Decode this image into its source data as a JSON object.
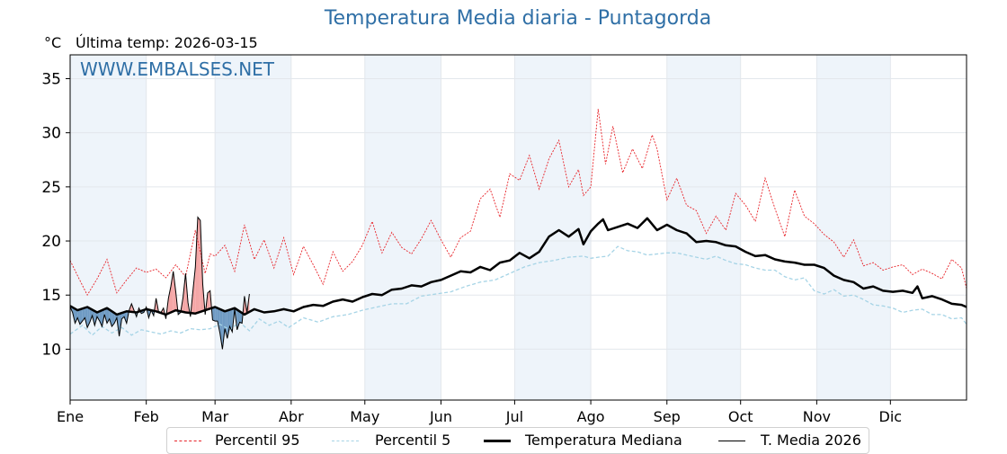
{
  "header": {
    "unit": "°C",
    "last_temp": "Última temp: 2026-03-15"
  },
  "chart_data": {
    "type": "line",
    "title": "Temperatura Media diaria - Puntagorda",
    "watermark": "WWW.EMBALSES.NET",
    "xlabel": "",
    "ylabel": "°C",
    "xlim": [
      1,
      366
    ],
    "ylim": [
      5.3,
      37.2
    ],
    "grid": true,
    "yticks": [
      10,
      15,
      20,
      25,
      30,
      35
    ],
    "month_ticks": [
      {
        "label": "Ene",
        "day": 1
      },
      {
        "label": "Feb",
        "day": 32
      },
      {
        "label": "Mar",
        "day": 60
      },
      {
        "label": "Abr",
        "day": 91
      },
      {
        "label": "May",
        "day": 121
      },
      {
        "label": "Jun",
        "day": 152
      },
      {
        "label": "Jul",
        "day": 182
      },
      {
        "label": "Ago",
        "day": 213
      },
      {
        "label": "Sep",
        "day": 244
      },
      {
        "label": "Oct",
        "day": 274
      },
      {
        "label": "Nov",
        "day": 305
      },
      {
        "label": "Dic",
        "day": 335
      }
    ],
    "shaded_months": [
      [
        1,
        32
      ],
      [
        60,
        91
      ],
      [
        121,
        152
      ],
      [
        182,
        213
      ],
      [
        244,
        274
      ],
      [
        305,
        335
      ]
    ],
    "legend_position": "bottom",
    "colors": {
      "p95": "#e8242a",
      "p5": "#a6d4e6",
      "median": "#000000",
      "current": "#000000",
      "above_fill": "#f4a6a6",
      "below_fill": "#6f9bc4",
      "shade": "#eef4fa",
      "title": "#2f6fa6"
    },
    "series": [
      {
        "name": "Percentil 95",
        "key": "p95",
        "x": [
          1,
          4,
          8,
          12,
          16,
          20,
          24,
          28,
          32,
          36,
          40,
          44,
          48,
          52,
          56,
          58,
          60,
          64,
          68,
          72,
          76,
          80,
          84,
          88,
          92,
          96,
          100,
          104,
          108,
          112,
          116,
          120,
          124,
          128,
          132,
          136,
          140,
          144,
          148,
          152,
          156,
          160,
          164,
          168,
          172,
          176,
          180,
          184,
          188,
          192,
          196,
          200,
          204,
          208,
          210,
          213,
          216,
          219,
          222,
          226,
          230,
          234,
          238,
          240,
          244,
          248,
          252,
          256,
          260,
          264,
          268,
          272,
          276,
          280,
          284,
          288,
          292,
          296,
          300,
          304,
          308,
          312,
          316,
          320,
          324,
          328,
          332,
          336,
          340,
          344,
          348,
          352,
          356,
          360,
          364,
          366
        ],
        "values": [
          18.2,
          16.8,
          15.0,
          16.5,
          18.3,
          15.2,
          16.4,
          17.5,
          17.1,
          17.4,
          16.6,
          17.8,
          16.7,
          21.0,
          17.0,
          18.8,
          18.6,
          19.6,
          17.2,
          21.5,
          18.3,
          20.1,
          17.5,
          20.3,
          16.9,
          19.5,
          17.8,
          16.0,
          19.0,
          17.2,
          18.1,
          19.6,
          21.8,
          18.9,
          20.8,
          19.4,
          18.8,
          20.2,
          21.9,
          20.1,
          18.5,
          20.3,
          20.9,
          23.9,
          24.8,
          22.2,
          26.2,
          25.6,
          27.9,
          24.8,
          27.6,
          29.3,
          25.0,
          26.6,
          24.2,
          25.0,
          32.2,
          27.1,
          30.6,
          26.3,
          28.5,
          26.7,
          29.8,
          28.5,
          23.8,
          25.8,
          23.3,
          22.8,
          20.7,
          22.3,
          21.0,
          24.4,
          23.3,
          21.8,
          25.8,
          23.0,
          20.4,
          24.7,
          22.3,
          21.6,
          20.6,
          19.9,
          18.5,
          20.1,
          17.7,
          18.0,
          17.3,
          17.6,
          17.8,
          16.9,
          17.4,
          17.0,
          16.5,
          18.3,
          17.5,
          15.6
        ]
      },
      {
        "name": "Percentil 5",
        "key": "p5",
        "x": [
          1,
          6,
          10,
          14,
          18,
          22,
          26,
          30,
          34,
          38,
          42,
          46,
          50,
          54,
          58,
          62,
          66,
          70,
          74,
          78,
          82,
          86,
          90,
          96,
          102,
          108,
          114,
          120,
          126,
          132,
          138,
          144,
          150,
          156,
          162,
          168,
          174,
          180,
          186,
          192,
          198,
          204,
          210,
          213,
          216,
          220,
          224,
          228,
          232,
          236,
          240,
          244,
          248,
          252,
          256,
          260,
          264,
          268,
          272,
          276,
          280,
          284,
          288,
          292,
          296,
          300,
          304,
          308,
          312,
          316,
          320,
          324,
          328,
          332,
          336,
          340,
          344,
          348,
          352,
          356,
          360,
          364,
          366
        ],
        "values": [
          11.4,
          12.2,
          11.3,
          12.1,
          11.5,
          12.0,
          11.3,
          11.8,
          11.6,
          11.4,
          11.7,
          11.5,
          11.9,
          11.8,
          11.9,
          12.3,
          11.8,
          12.5,
          11.7,
          12.8,
          12.2,
          12.6,
          12.0,
          12.9,
          12.5,
          13.0,
          13.2,
          13.6,
          13.9,
          14.2,
          14.2,
          14.9,
          15.1,
          15.3,
          15.8,
          16.2,
          16.4,
          17.0,
          17.6,
          18.0,
          18.2,
          18.5,
          18.6,
          18.4,
          18.5,
          18.6,
          19.5,
          19.1,
          19.0,
          18.7,
          18.8,
          18.9,
          18.9,
          18.7,
          18.5,
          18.3,
          18.6,
          18.2,
          17.9,
          17.8,
          17.5,
          17.3,
          17.3,
          16.7,
          16.4,
          16.6,
          15.4,
          15.1,
          15.5,
          14.9,
          15.0,
          14.6,
          14.1,
          14.0,
          13.8,
          13.4,
          13.6,
          13.7,
          13.2,
          13.2,
          12.8,
          12.9,
          12.3
        ]
      },
      {
        "name": "Temperatura Mediana",
        "key": "median",
        "x": [
          1,
          4,
          8,
          12,
          16,
          20,
          24,
          28,
          32,
          36,
          40,
          44,
          48,
          52,
          56,
          60,
          64,
          68,
          72,
          76,
          80,
          84,
          88,
          92,
          96,
          100,
          104,
          108,
          112,
          116,
          120,
          124,
          128,
          132,
          136,
          140,
          144,
          148,
          152,
          156,
          160,
          164,
          168,
          172,
          176,
          180,
          184,
          188,
          192,
          196,
          200,
          204,
          208,
          210,
          213,
          216,
          218,
          220,
          224,
          228,
          232,
          236,
          240,
          244,
          248,
          252,
          256,
          260,
          264,
          268,
          272,
          276,
          280,
          284,
          288,
          292,
          296,
          300,
          304,
          308,
          312,
          316,
          320,
          324,
          328,
          332,
          336,
          340,
          344,
          346,
          348,
          352,
          356,
          360,
          364,
          366
        ],
        "values": [
          14.0,
          13.6,
          13.9,
          13.4,
          13.8,
          13.2,
          13.5,
          13.4,
          13.7,
          13.5,
          13.2,
          13.6,
          13.4,
          13.3,
          13.6,
          13.9,
          13.5,
          13.8,
          13.2,
          13.7,
          13.4,
          13.5,
          13.7,
          13.5,
          13.9,
          14.1,
          14.0,
          14.4,
          14.6,
          14.4,
          14.8,
          15.1,
          15.0,
          15.5,
          15.6,
          15.9,
          15.8,
          16.2,
          16.4,
          16.8,
          17.2,
          17.1,
          17.6,
          17.3,
          18.0,
          18.2,
          18.9,
          18.4,
          19.0,
          20.4,
          21.0,
          20.4,
          21.1,
          19.7,
          20.9,
          21.6,
          22.0,
          21.0,
          21.3,
          21.6,
          21.2,
          22.1,
          21.0,
          21.5,
          21.0,
          20.7,
          19.9,
          20.0,
          19.9,
          19.6,
          19.5,
          19.0,
          18.6,
          18.7,
          18.3,
          18.1,
          18.0,
          17.8,
          17.8,
          17.5,
          16.8,
          16.4,
          16.2,
          15.6,
          15.8,
          15.4,
          15.3,
          15.4,
          15.2,
          15.8,
          14.7,
          14.9,
          14.6,
          14.2,
          14.1,
          13.9
        ]
      },
      {
        "name": "T. Media 2026",
        "key": "current",
        "x": [
          1,
          2,
          3,
          4,
          5,
          6,
          7,
          8,
          9,
          10,
          11,
          12,
          13,
          14,
          15,
          16,
          17,
          18,
          19,
          20,
          21,
          22,
          23,
          24,
          25,
          26,
          27,
          28,
          29,
          30,
          31,
          32,
          33,
          34,
          35,
          36,
          37,
          38,
          39,
          40,
          41,
          42,
          43,
          44,
          45,
          46,
          47,
          48,
          49,
          50,
          51,
          52,
          53,
          54,
          55,
          56,
          57,
          58,
          59,
          60,
          61,
          62,
          63,
          64,
          65,
          66,
          67,
          68,
          69,
          70,
          71,
          72,
          73,
          74
        ],
        "values": [
          13.9,
          13.4,
          12.4,
          12.9,
          12.3,
          12.6,
          12.9,
          12.0,
          12.5,
          13.1,
          12.2,
          13.0,
          12.6,
          12.1,
          13.2,
          12.4,
          12.8,
          12.1,
          12.4,
          12.9,
          11.2,
          12.8,
          13.0,
          12.4,
          13.6,
          14.2,
          13.6,
          13.0,
          13.8,
          13.3,
          13.4,
          13.9,
          12.9,
          13.6,
          13.1,
          14.7,
          13.5,
          13.4,
          13.8,
          12.8,
          14.7,
          15.8,
          17.2,
          15.3,
          13.2,
          13.4,
          14.8,
          17.0,
          14.3,
          13.0,
          15.4,
          17.6,
          22.2,
          21.9,
          16.0,
          13.2,
          15.2,
          15.4,
          12.7,
          12.6,
          12.6,
          11.5,
          10.0,
          11.9,
          11.0,
          12.1,
          11.6,
          13.7,
          11.8,
          12.5,
          12.4,
          14.9,
          13.4,
          15.1
        ]
      }
    ]
  }
}
